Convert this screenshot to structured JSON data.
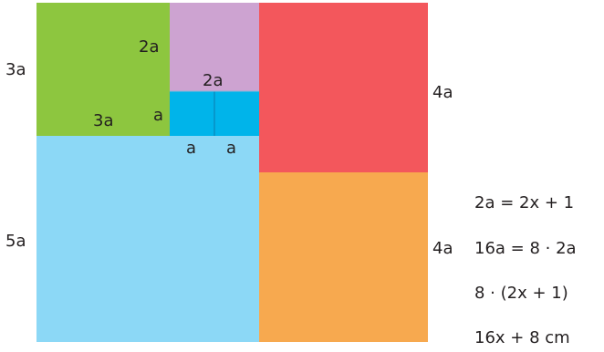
{
  "diagram": {
    "regions": [
      {
        "id": "green-square",
        "color": "#8dc63f"
      },
      {
        "id": "purple-square",
        "color": "#cda3d1"
      },
      {
        "id": "small-square-left",
        "color": "#00b4ea"
      },
      {
        "id": "small-square-right",
        "color": "#00b4ea"
      },
      {
        "id": "red-square",
        "color": "#f3575c"
      },
      {
        "id": "light-blue-square",
        "color": "#8cd8f6"
      },
      {
        "id": "orange-square",
        "color": "#f7a94f"
      }
    ],
    "labels": {
      "green_left": "3a",
      "green_bottom": "3a",
      "purple_left": "2a",
      "purple_bottom": "2a",
      "small_left": "a",
      "small_bottom_1": "a",
      "small_bottom_2": "a",
      "red_right": "4a",
      "orange_right": "4a",
      "blue_left": "5a"
    },
    "equations": [
      "2a = 2x + 1",
      "16a = 8 · 2a",
      "8 · (2x + 1)",
      "16x + 8 cm"
    ]
  }
}
